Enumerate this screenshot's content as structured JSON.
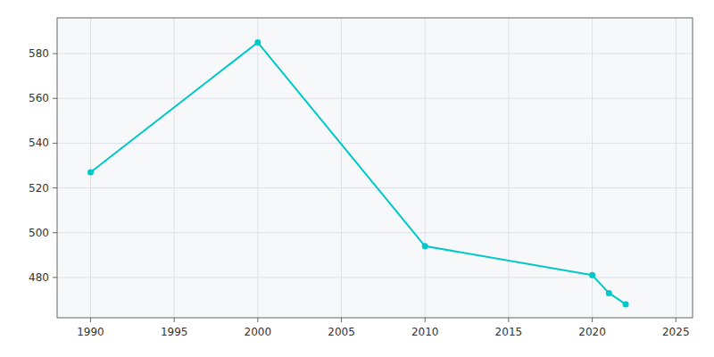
{
  "chart_data": {
    "type": "line",
    "x": [
      1990,
      2000,
      2010,
      2020,
      2021,
      2022
    ],
    "values": [
      527,
      585,
      494,
      481,
      473,
      468
    ],
    "color": "#00C8C8",
    "marker": "circle",
    "xlim": [
      1988,
      2026
    ],
    "ylim": [
      462,
      596
    ],
    "xticks": [
      1990,
      1995,
      2000,
      2005,
      2010,
      2015,
      2020,
      2025
    ],
    "yticks": [
      480,
      500,
      520,
      540,
      560,
      580
    ],
    "grid": true
  }
}
